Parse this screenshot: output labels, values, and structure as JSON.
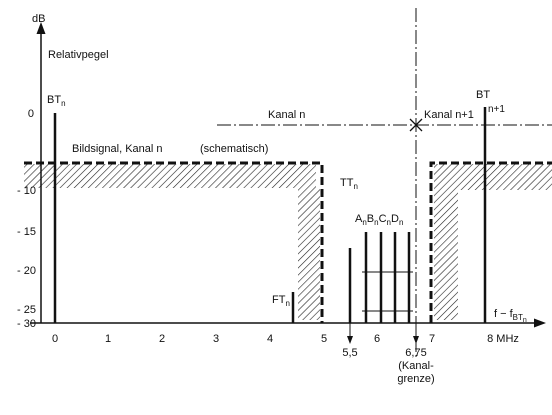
{
  "axis": {
    "y_unit": "dB",
    "y_label": "Relativpegel",
    "y_ticks": [
      "0",
      "- 10",
      "- 15",
      "- 20",
      "- 25",
      "- 30"
    ],
    "x_ticks": [
      "0",
      "1",
      "2",
      "3",
      "4",
      "5",
      "6",
      "7",
      "8 MHz"
    ],
    "x_label": {
      "main": "f − f",
      "sub": "BT",
      "subsub": "n"
    },
    "x_marks": [
      "5,5",
      "6,75"
    ],
    "boundary_note": [
      "(Kanal-",
      "grenze)"
    ]
  },
  "carriers": [
    {
      "name": "BT",
      "sub": "n"
    },
    {
      "name": "FT",
      "sub": "n"
    },
    {
      "name": "TT",
      "sub": "n"
    },
    {
      "name": "A",
      "sub": "n"
    },
    {
      "name": "B",
      "sub": "n"
    },
    {
      "name": "C",
      "sub": "n"
    },
    {
      "name": "D",
      "sub": "n"
    },
    {
      "name": "BT",
      "sub": "n+1"
    }
  ],
  "annotations": {
    "channel": "Kanal n",
    "next_channel": "Kanal n+1",
    "signal": "Bildsignal, Kanal n",
    "signal_note": "(schematisch)"
  }
}
